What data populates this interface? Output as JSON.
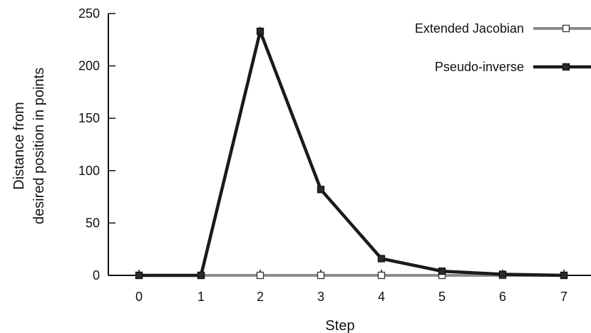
{
  "chart_data": {
    "type": "line",
    "title": "",
    "xlabel": "Step",
    "ylabel_lines": [
      "Distance from",
      "desired position in points"
    ],
    "x": [
      0,
      1,
      2,
      3,
      4,
      5,
      6,
      7
    ],
    "xlim": [
      0,
      7
    ],
    "ylim": [
      0,
      250
    ],
    "yticks": [
      0,
      50,
      100,
      150,
      200,
      250
    ],
    "grid": false,
    "legend_position": "top-right",
    "series": [
      {
        "name": "Extended Jacobian",
        "values": [
          0,
          0,
          0,
          0,
          0,
          0,
          0,
          0
        ],
        "color": "#8c8c8c",
        "marker": "hollow-square"
      },
      {
        "name": "Pseudo-inverse",
        "values": [
          0,
          0,
          233,
          82,
          16,
          4,
          1,
          0
        ],
        "color": "#1a1a1a",
        "marker": "filled-square"
      }
    ]
  }
}
